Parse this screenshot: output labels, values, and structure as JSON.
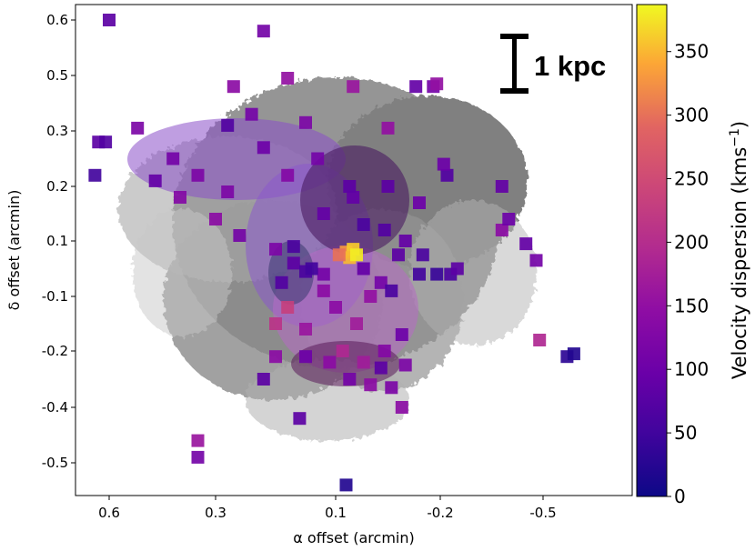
{
  "chart_data": {
    "type": "heatmap",
    "title": "",
    "xlabel": "α offset (arcmin)",
    "ylabel": "δ offset (arcmin)",
    "xlim": [
      0.7,
      -0.62
    ],
    "ylim": [
      -0.56,
      0.63
    ],
    "x_ticks": [
      0.6,
      0.3,
      0.1,
      -0.2,
      -0.5
    ],
    "x_tick_labels": [
      "0.6",
      "0.3",
      "0.1",
      "-0.2",
      "-0.5"
    ],
    "y_ticks": [
      0.6,
      0.5,
      0.3,
      0.2,
      0.1,
      -0.1,
      -0.2,
      -0.4,
      -0.5
    ],
    "y_tick_labels": [
      "0.6",
      "0.5",
      "0.3",
      "0.2",
      "0.1",
      "-0.1",
      "-0.2",
      "-0.4",
      "-0.5"
    ],
    "colorbar": {
      "label": "Velocity dispersion (kms",
      "label_sup": "−1",
      "label_close": ")",
      "range": [
        0,
        387
      ],
      "ticks": [
        0,
        50,
        100,
        150,
        200,
        250,
        300,
        350
      ],
      "tick_labels": [
        "0",
        "50",
        "100",
        "150",
        "200",
        "250",
        "300",
        "350"
      ],
      "colormap": "plasma"
    },
    "scale_bar": {
      "label": "1 kpc"
    },
    "background_color": "#808080",
    "pixels": [
      {
        "x": 0.6,
        "y": 0.6,
        "v": 80
      },
      {
        "x": 0.22,
        "y": 0.58,
        "v": 110
      },
      {
        "x": -0.13,
        "y": 0.46,
        "v": 90
      },
      {
        "x": -0.18,
        "y": 0.46,
        "v": 110
      },
      {
        "x": -0.19,
        "y": 0.47,
        "v": 150
      },
      {
        "x": 0.63,
        "y": 0.28,
        "v": 80
      },
      {
        "x": 0.61,
        "y": 0.28,
        "v": 70
      },
      {
        "x": 0.64,
        "y": 0.22,
        "v": 50
      },
      {
        "x": 0.52,
        "y": 0.31,
        "v": 120
      },
      {
        "x": 0.42,
        "y": 0.25,
        "v": 110
      },
      {
        "x": 0.35,
        "y": 0.22,
        "v": 120
      },
      {
        "x": 0.28,
        "y": 0.19,
        "v": 120
      },
      {
        "x": 0.22,
        "y": 0.27,
        "v": 100
      },
      {
        "x": 0.13,
        "y": 0.25,
        "v": 110
      },
      {
        "x": 0.05,
        "y": 0.18,
        "v": 90
      },
      {
        "x": -0.05,
        "y": 0.2,
        "v": 80
      },
      {
        "x": -0.14,
        "y": 0.17,
        "v": 100
      },
      {
        "x": 0.18,
        "y": 0.22,
        "v": 130
      },
      {
        "x": 0.12,
        "y": 0.15,
        "v": 90
      },
      {
        "x": 0.2,
        "y": 0.07,
        "v": 120
      },
      {
        "x": 0.17,
        "y": 0.02,
        "v": 80
      },
      {
        "x": 0.15,
        "y": -0.01,
        "v": 60
      },
      {
        "x": 0.19,
        "y": -0.05,
        "v": 70
      },
      {
        "x": 0.12,
        "y": -0.02,
        "v": 110
      },
      {
        "x": 0.07,
        "y": 0.06,
        "v": 330
      },
      {
        "x": 0.05,
        "y": 0.07,
        "v": 360
      },
      {
        "x": 0.06,
        "y": 0.04,
        "v": 350
      },
      {
        "x": 0.04,
        "y": 0.05,
        "v": 380
      },
      {
        "x": 0.09,
        "y": 0.05,
        "v": 300
      },
      {
        "x": 0.12,
        "y": -0.08,
        "v": 140
      },
      {
        "x": 0.18,
        "y": -0.12,
        "v": 230
      },
      {
        "x": 0.2,
        "y": -0.15,
        "v": 210
      },
      {
        "x": 0.15,
        "y": -0.16,
        "v": 160
      },
      {
        "x": 0.1,
        "y": -0.12,
        "v": 140
      },
      {
        "x": 0.04,
        "y": -0.15,
        "v": 170
      },
      {
        "x": 0.0,
        "y": -0.1,
        "v": 150
      },
      {
        "x": -0.03,
        "y": -0.05,
        "v": 110
      },
      {
        "x": 0.02,
        "y": 0.0,
        "v": 90
      },
      {
        "x": 0.08,
        "y": -0.2,
        "v": 190
      },
      {
        "x": 0.02,
        "y": -0.24,
        "v": 170
      },
      {
        "x": -0.04,
        "y": -0.2,
        "v": 130
      },
      {
        "x": 0.11,
        "y": -0.24,
        "v": 140
      },
      {
        "x": 0.15,
        "y": -0.22,
        "v": 100
      },
      {
        "x": 0.2,
        "y": -0.22,
        "v": 140
      },
      {
        "x": 0.06,
        "y": -0.3,
        "v": 110
      },
      {
        "x": 0.0,
        "y": -0.32,
        "v": 140
      },
      {
        "x": -0.06,
        "y": -0.33,
        "v": 120
      },
      {
        "x": -0.03,
        "y": -0.26,
        "v": 80
      },
      {
        "x": -0.06,
        "y": -0.08,
        "v": 60
      },
      {
        "x": -0.08,
        "y": 0.05,
        "v": 80
      },
      {
        "x": -0.1,
        "y": 0.1,
        "v": 90
      },
      {
        "x": -0.04,
        "y": 0.12,
        "v": 70
      },
      {
        "x": 0.02,
        "y": 0.13,
        "v": 60
      },
      {
        "x": 0.06,
        "y": 0.2,
        "v": 80
      },
      {
        "x": 0.14,
        "y": 0.0,
        "v": 50
      },
      {
        "x": 0.17,
        "y": 0.08,
        "v": 60
      },
      {
        "x": -0.14,
        "y": -0.02,
        "v": 50
      },
      {
        "x": -0.19,
        "y": -0.02,
        "v": 40
      },
      {
        "x": -0.23,
        "y": -0.02,
        "v": 60
      },
      {
        "x": -0.25,
        "y": 0.0,
        "v": 80
      },
      {
        "x": -0.15,
        "y": 0.05,
        "v": 60
      },
      {
        "x": -0.22,
        "y": 0.22,
        "v": 70
      },
      {
        "x": -0.21,
        "y": 0.24,
        "v": 100
      },
      {
        "x": -0.38,
        "y": 0.2,
        "v": 90
      },
      {
        "x": -0.38,
        "y": 0.12,
        "v": 140
      },
      {
        "x": -0.4,
        "y": 0.14,
        "v": 100
      },
      {
        "x": -0.45,
        "y": 0.09,
        "v": 90
      },
      {
        "x": -0.48,
        "y": 0.03,
        "v": 110
      },
      {
        "x": -0.49,
        "y": -0.18,
        "v": 190
      },
      {
        "x": -0.57,
        "y": -0.22,
        "v": 30
      },
      {
        "x": -0.59,
        "y": -0.21,
        "v": 20
      },
      {
        "x": 0.07,
        "y": -0.54,
        "v": 20
      },
      {
        "x": 0.35,
        "y": -0.46,
        "v": 160
      },
      {
        "x": 0.35,
        "y": -0.49,
        "v": 110
      },
      {
        "x": 0.16,
        "y": -0.42,
        "v": 80
      },
      {
        "x": -0.09,
        "y": -0.4,
        "v": 140
      },
      {
        "x": 0.27,
        "y": 0.46,
        "v": 140
      },
      {
        "x": 0.05,
        "y": 0.46,
        "v": 160
      },
      {
        "x": 0.18,
        "y": 0.49,
        "v": 150
      },
      {
        "x": 0.28,
        "y": 0.32,
        "v": 70
      },
      {
        "x": 0.24,
        "y": 0.36,
        "v": 110
      },
      {
        "x": 0.15,
        "y": 0.33,
        "v": 120
      },
      {
        "x": -0.05,
        "y": 0.31,
        "v": 150
      },
      {
        "x": 0.47,
        "y": 0.21,
        "v": 90
      },
      {
        "x": 0.4,
        "y": 0.18,
        "v": 130
      },
      {
        "x": 0.3,
        "y": 0.14,
        "v": 140
      },
      {
        "x": 0.26,
        "y": 0.11,
        "v": 110
      },
      {
        "x": -0.09,
        "y": -0.17,
        "v": 100
      },
      {
        "x": -0.1,
        "y": -0.25,
        "v": 120
      },
      {
        "x": 0.22,
        "y": -0.3,
        "v": 80
      }
    ]
  }
}
